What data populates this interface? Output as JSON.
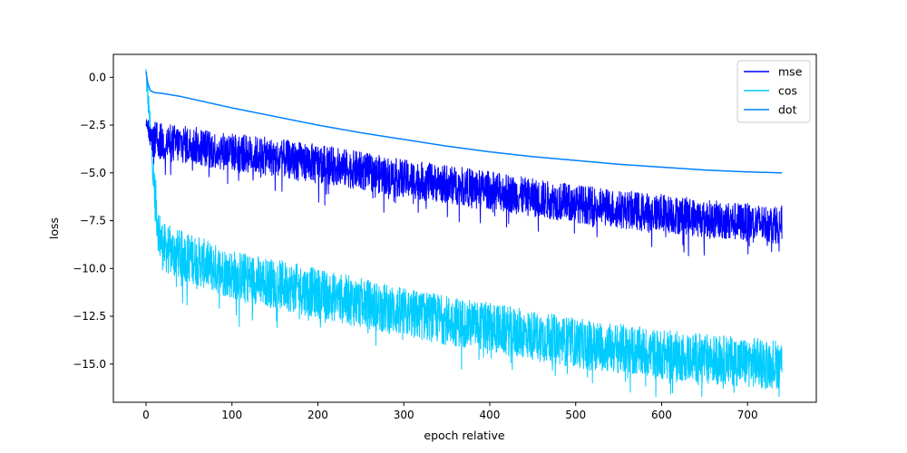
{
  "chart_data": {
    "type": "line",
    "title": "",
    "xlabel": "epoch relative",
    "ylabel": "loss",
    "xlim": [
      -38,
      780
    ],
    "ylim": [
      -17.0,
      1.2
    ],
    "xticks": [
      0,
      100,
      200,
      300,
      400,
      500,
      600,
      700
    ],
    "yticks": [
      0.0,
      -2.5,
      -5.0,
      -7.5,
      -10.0,
      -12.5,
      -15.0
    ],
    "ytick_labels": [
      "0.0",
      "−2.5",
      "−5.0",
      "−7.5",
      "−10.0",
      "−12.5",
      "−15.0"
    ],
    "grid": false,
    "legend_position": "top-right",
    "series": [
      {
        "name": "mse",
        "color": "#0000ff",
        "x": [
          0,
          5,
          10,
          20,
          40,
          60,
          80,
          100,
          150,
          200,
          250,
          300,
          350,
          400,
          450,
          500,
          550,
          600,
          650,
          700,
          740
        ],
        "y": [
          -2.0,
          -3.2,
          -3.3,
          -3.4,
          -3.5,
          -3.6,
          -3.8,
          -3.9,
          -4.2,
          -4.5,
          -4.9,
          -5.3,
          -5.6,
          -5.9,
          -6.3,
          -6.6,
          -6.9,
          -7.1,
          -7.4,
          -7.6,
          -7.7
        ],
        "noise": 1.0
      },
      {
        "name": "cos",
        "color": "#00ccff",
        "x": [
          0,
          3,
          6,
          10,
          15,
          20,
          30,
          40,
          60,
          80,
          100,
          150,
          200,
          250,
          300,
          350,
          400,
          450,
          500,
          550,
          600,
          650,
          700,
          740
        ],
        "y": [
          0.2,
          -1.5,
          -3.5,
          -6.0,
          -8.2,
          -8.9,
          -9.1,
          -9.3,
          -9.6,
          -10.0,
          -10.3,
          -10.8,
          -11.3,
          -11.8,
          -12.3,
          -12.7,
          -13.1,
          -13.5,
          -13.9,
          -14.2,
          -14.5,
          -14.7,
          -14.9,
          -15.0
        ],
        "noise": 1.3
      },
      {
        "name": "dot",
        "color": "#0080ff",
        "x": [
          0,
          2,
          5,
          10,
          20,
          40,
          60,
          80,
          100,
          150,
          200,
          250,
          300,
          350,
          400,
          450,
          500,
          550,
          600,
          650,
          700,
          740
        ],
        "y": [
          0.3,
          -0.3,
          -0.7,
          -0.8,
          -0.85,
          -1.0,
          -1.2,
          -1.4,
          -1.6,
          -2.05,
          -2.5,
          -2.9,
          -3.25,
          -3.6,
          -3.9,
          -4.15,
          -4.35,
          -4.55,
          -4.7,
          -4.85,
          -4.95,
          -5.0
        ],
        "noise": 0.0
      }
    ]
  }
}
